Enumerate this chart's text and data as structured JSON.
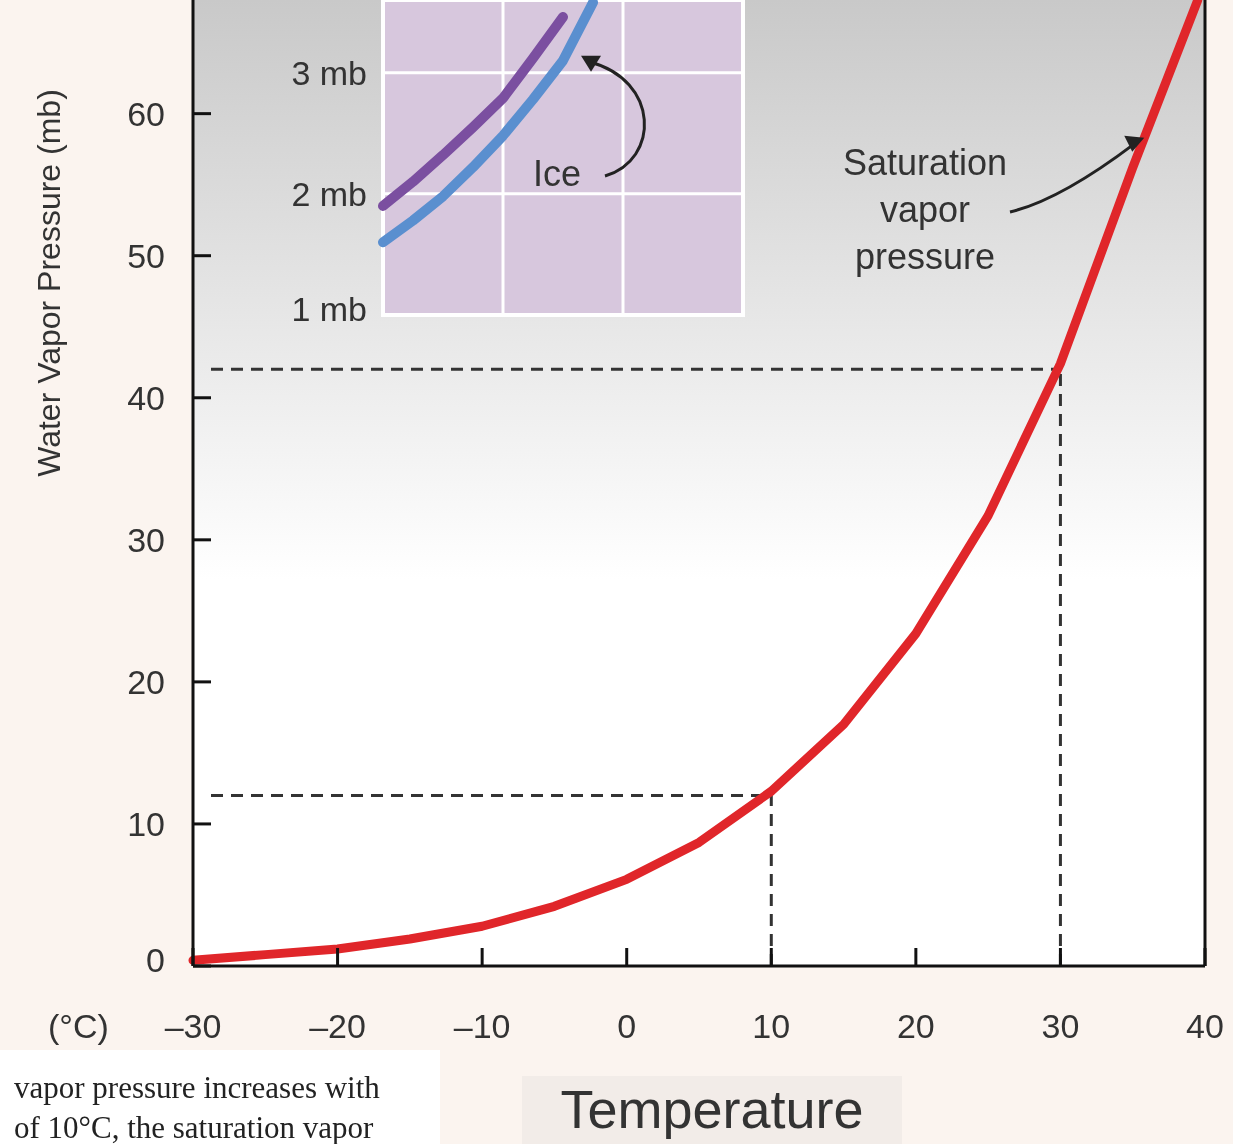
{
  "chart_data": [
    {
      "type": "line",
      "xlabel": "Temperature",
      "ylabel": "Water Vapor Pressure (mb)",
      "xlim": [
        -30,
        40
      ],
      "ylim": [
        0,
        68
      ],
      "xticks": [
        {
          "value": -30,
          "label": "–30"
        },
        {
          "value": -20,
          "label": "–20"
        },
        {
          "value": -10,
          "label": "–10"
        },
        0,
        10,
        20,
        30,
        40
      ],
      "yticks": [
        0,
        10,
        20,
        30,
        40,
        50,
        60
      ],
      "series": [
        {
          "name": "Saturation vapor pressure",
          "color": "#e0262a",
          "x": [
            -30,
            -25,
            -20,
            -15,
            -10,
            -5,
            0,
            5,
            10,
            15,
            20,
            25,
            30,
            35,
            39.5
          ],
          "values": [
            0.4,
            0.8,
            1.2,
            1.9,
            2.8,
            4.2,
            6.1,
            8.7,
            12.3,
            17,
            23.4,
            31.7,
            42.4,
            56.2,
            68
          ]
        }
      ],
      "ref_lines": [
        {
          "axis": "y",
          "value": 42,
          "line_style": "dashed",
          "color": "#333333"
        },
        {
          "axis": "x",
          "value": 30,
          "line_style": "dashed",
          "color": "#333333"
        },
        {
          "axis": "y",
          "value": 12,
          "line_style": "dashed",
          "color": "#333333"
        },
        {
          "axis": "x",
          "value": 10,
          "line_style": "dashed",
          "color": "#333333"
        }
      ],
      "annotations": [
        "(°C)",
        "vapor pressure increases with",
        "of 10°C, the saturation vapor"
      ]
    },
    {
      "type": "line",
      "categories": [
        null,
        null,
        null,
        null,
        null,
        null,
        null,
        null,
        null,
        null,
        null,
        null,
        null
      ],
      "ylim": [
        1,
        3.6
      ],
      "yticks": [
        {
          "value": 1,
          "label": "1 mb"
        },
        {
          "value": 2,
          "label": "2 mb"
        },
        {
          "value": 3,
          "label": "3 mb"
        }
      ],
      "grid": true,
      "tick_labels": "y",
      "series": [
        {
          "color": "#7b4fa0",
          "values": [
            1.9,
            2.1,
            2.32,
            2.55,
            2.79,
            3.12,
            3.46,
            null,
            null,
            null,
            null,
            null,
            null
          ]
        },
        {
          "name": "Ice",
          "color": "#5a8fcf",
          "values": [
            1.6,
            1.78,
            1.98,
            2.22,
            2.48,
            2.78,
            3.1,
            3.58,
            null,
            null,
            null,
            null,
            null
          ]
        }
      ]
    }
  ]
}
